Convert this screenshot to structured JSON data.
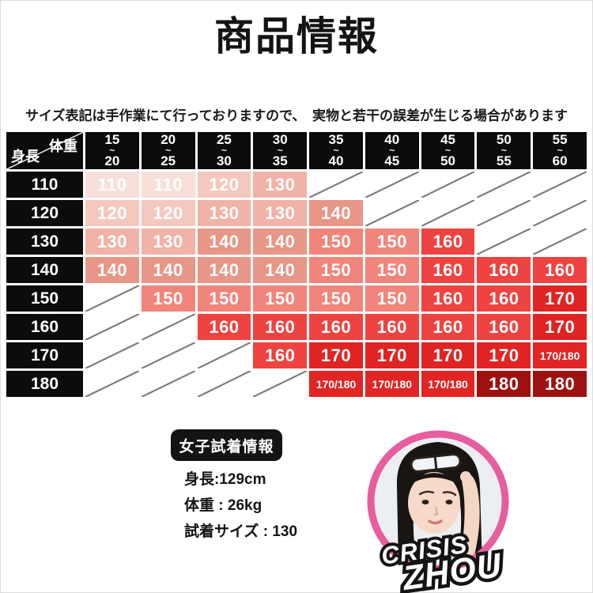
{
  "header": {
    "title": "商品情報",
    "note": "サイズ表記は手作業にて行っておりますので、　実物と若干の誤差が生じる場合があります"
  },
  "chart_data": {
    "type": "table",
    "title": "商品情報",
    "col_header_label": "体重",
    "row_header_label": "身長",
    "col_unit_note": "kg",
    "row_unit_note": "cm",
    "tilde": "~",
    "columns": [
      {
        "min": "15",
        "max": "20"
      },
      {
        "min": "20",
        "max": "25"
      },
      {
        "min": "25",
        "max": "30"
      },
      {
        "min": "30",
        "max": "35"
      },
      {
        "min": "35",
        "max": "40"
      },
      {
        "min": "40",
        "max": "45"
      },
      {
        "min": "45",
        "max": "50"
      },
      {
        "min": "50",
        "max": "55"
      },
      {
        "min": "55",
        "max": "60"
      }
    ],
    "rows": [
      "110",
      "120",
      "130",
      "140",
      "150",
      "160",
      "170",
      "180"
    ],
    "values": [
      [
        "110",
        "110",
        "120",
        "130",
        "",
        "",
        "",
        "",
        ""
      ],
      [
        "120",
        "120",
        "130",
        "130",
        "140",
        "",
        "",
        "",
        ""
      ],
      [
        "130",
        "130",
        "140",
        "140",
        "150",
        "150",
        "160",
        "",
        ""
      ],
      [
        "140",
        "140",
        "140",
        "140",
        "150",
        "150",
        "160",
        "160",
        "160"
      ],
      [
        "",
        "150",
        "150",
        "150",
        "150",
        "150",
        "160",
        "160",
        "170"
      ],
      [
        "",
        "",
        "160",
        "160",
        "160",
        "160",
        "160",
        "160",
        "170"
      ],
      [
        "",
        "",
        "",
        "160",
        "170",
        "170",
        "170",
        "170",
        "170/180"
      ],
      [
        "",
        "",
        "",
        "",
        "170/180",
        "170/180",
        "170/180",
        "180",
        "180"
      ]
    ],
    "value_colors": {
      "110": "#f8dfda",
      "120": "#f5c8bf",
      "130": "#f1b2a8",
      "140": "#e89687",
      "150": "#f1857b",
      "160": "#ee4340",
      "170": "#df2423",
      "170/180": "#e02524",
      "180": "#9d1210"
    },
    "header_bg": "#0c0c0c",
    "empty_line_color": "#7b7b7b"
  },
  "fitting_info": {
    "badge_label": "女子試着情報",
    "height_line": "身長:129cm",
    "weight_line": "体重 : 26kg",
    "size_line": "試着サイズ : 130"
  },
  "model_avatar": {
    "brand_line1": "CRISIS",
    "brand_line2": "ZHOU",
    "ring_color": "#e75d9e"
  }
}
